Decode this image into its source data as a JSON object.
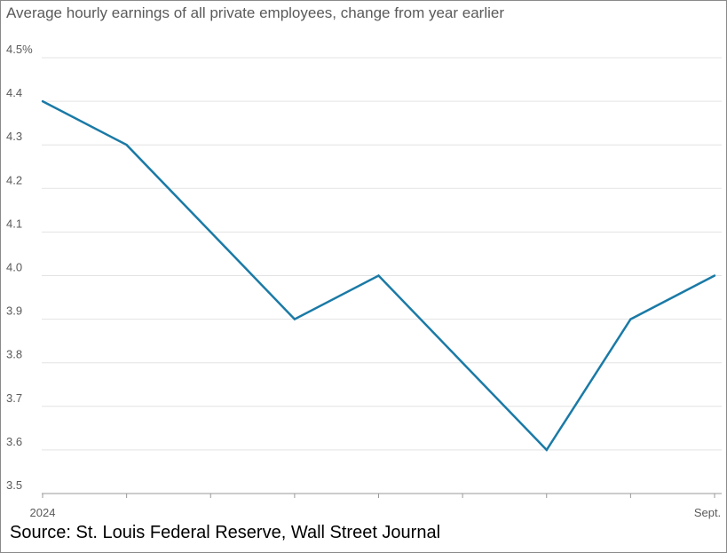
{
  "chart_data": {
    "type": "line",
    "title": "Average hourly earnings of all private employees, change from year earlier",
    "xlabel": "",
    "ylabel": "",
    "x_tick_labels": [
      "2024",
      "Sept."
    ],
    "y_ticks": [
      {
        "value": 3.5,
        "label": "3.5"
      },
      {
        "value": 3.6,
        "label": "3.6"
      },
      {
        "value": 3.7,
        "label": "3.7"
      },
      {
        "value": 3.8,
        "label": "3.8"
      },
      {
        "value": 3.9,
        "label": "3.9"
      },
      {
        "value": 4.0,
        "label": "4.0"
      },
      {
        "value": 4.1,
        "label": "4.1"
      },
      {
        "value": 4.2,
        "label": "4.2"
      },
      {
        "value": 4.3,
        "label": "4.3"
      },
      {
        "value": 4.4,
        "label": "4.4"
      },
      {
        "value": 4.5,
        "label": "4.5%"
      }
    ],
    "ylim": [
      3.5,
      4.5
    ],
    "grid": true,
    "series": [
      {
        "values": [
          4.4,
          4.3,
          4.1,
          3.9,
          4.0,
          3.8,
          3.6,
          3.9,
          4.0
        ]
      }
    ],
    "colors": {
      "line": "#1a7aa6",
      "grid": "#e3e3e3",
      "axis": "#999999",
      "tick_text": "#5a5a5a"
    }
  },
  "source": "Source: St. Louis Federal Reserve, Wall Street Journal"
}
